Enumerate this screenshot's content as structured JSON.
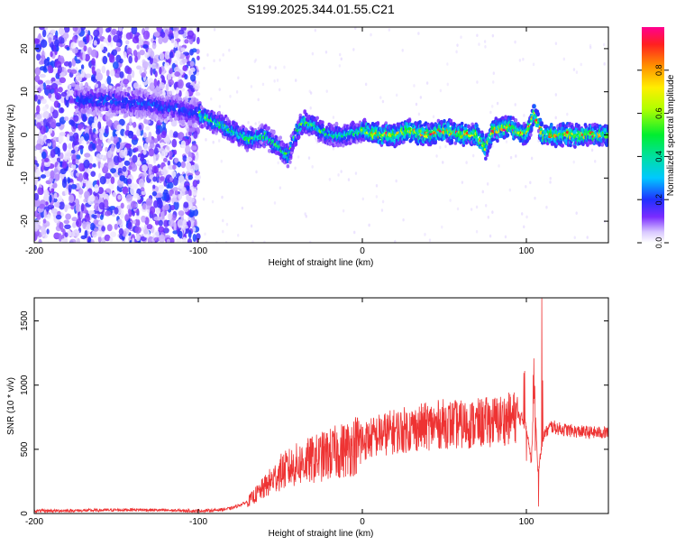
{
  "title": "S199.2025.344.01.55.C21",
  "chart_data": [
    {
      "type": "heatmap",
      "title": "S199.2025.344.01.55.C21",
      "xlabel": "Height of straight line (km)",
      "ylabel": "Frequency (Hz)",
      "xlim": [
        -200,
        150
      ],
      "ylim": [
        -25,
        25
      ],
      "xticks": [
        -200,
        -100,
        0,
        100
      ],
      "xtick_labels": [
        "-200",
        "-100",
        "0",
        "100"
      ],
      "yticks": [
        -20,
        -10,
        0,
        10,
        20
      ],
      "ytick_labels": [
        "-20",
        "-10",
        "0",
        "10",
        "20"
      ],
      "colorbar": {
        "label": "Normalized spectral amplitude",
        "range": [
          0,
          1
        ],
        "ticks": [
          0,
          0.2,
          0.4,
          0.6,
          0.8
        ],
        "tick_labels": [
          "0.0",
          "0.2",
          "0.4",
          "0.6",
          "0.8"
        ]
      },
      "ridge": {
        "description_points_x": [
          -170,
          -150,
          -130,
          -110,
          -100,
          -90,
          -80,
          -70,
          -60,
          -50,
          -45,
          -40,
          -35,
          -30,
          -20,
          -10,
          0,
          10,
          20,
          30,
          40,
          50,
          60,
          70,
          75,
          80,
          90,
          100,
          105,
          110,
          120,
          130,
          140,
          150
        ],
        "frequency_hz": [
          8,
          8,
          7,
          6,
          5,
          3,
          1,
          -1,
          0,
          -3,
          -5,
          1,
          3,
          2,
          0,
          0,
          1,
          0,
          0,
          1,
          0,
          1,
          0,
          0,
          -3,
          1,
          2,
          0,
          5,
          0,
          0,
          0,
          0,
          0
        ]
      }
    },
    {
      "type": "line",
      "xlabel": "Height of straight line (km)",
      "ylabel": "SNR (10 * v/v)",
      "xlim": [
        -200,
        150
      ],
      "ylim": [
        0,
        1680
      ],
      "xticks": [
        -200,
        -100,
        0,
        100
      ],
      "xtick_labels": [
        "-200",
        "-100",
        "0",
        "100"
      ],
      "yticks": [
        0,
        500,
        1000,
        1500
      ],
      "ytick_labels": [
        "0",
        "500",
        "1000",
        "1500"
      ],
      "series": [
        {
          "name": "SNR",
          "color": "#ee3333",
          "x": [
            -200,
            -180,
            -160,
            -140,
            -120,
            -100,
            -90,
            -80,
            -70,
            -60,
            -50,
            -40,
            -30,
            -20,
            -10,
            0,
            10,
            20,
            30,
            40,
            50,
            60,
            70,
            80,
            90,
            95,
            100,
            103,
            105,
            107,
            110,
            115,
            120,
            130,
            140,
            150
          ],
          "values": [
            20,
            22,
            25,
            30,
            25,
            20,
            25,
            40,
            90,
            200,
            320,
            380,
            420,
            460,
            500,
            560,
            610,
            640,
            660,
            680,
            700,
            690,
            700,
            720,
            740,
            760,
            700,
            400,
            1000,
            300,
            600,
            680,
            660,
            640,
            630,
            630
          ]
        }
      ]
    }
  ]
}
